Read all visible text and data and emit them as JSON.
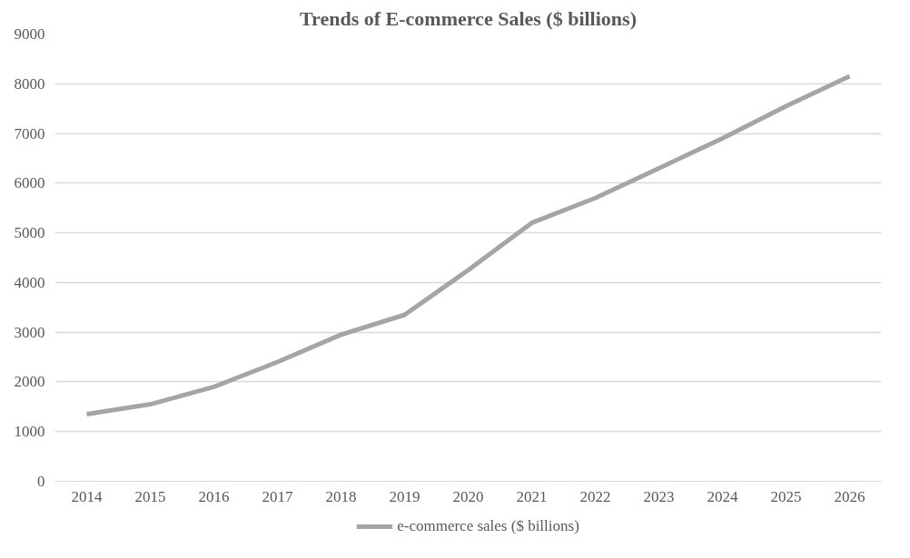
{
  "chart_data": {
    "type": "line",
    "title": "Trends of E-commerce Sales ($ billions)",
    "categories": [
      "2014",
      "2015",
      "2016",
      "2017",
      "2018",
      "2019",
      "2020",
      "2021",
      "2022",
      "2023",
      "2024",
      "2025",
      "2026"
    ],
    "series": [
      {
        "name": "e-commerce sales ($ billions)",
        "color": "#a5a5a5",
        "values": [
          1350,
          1550,
          1900,
          2400,
          2950,
          3350,
          4250,
          5200,
          5700,
          6300,
          6900,
          7550,
          8150
        ]
      }
    ],
    "ylim": [
      0,
      9000
    ],
    "yticks": [
      0,
      1000,
      2000,
      3000,
      4000,
      5000,
      6000,
      7000,
      8000,
      9000
    ],
    "grid": "y",
    "legend": "bottom",
    "marker": "none",
    "line_style": "solid"
  }
}
